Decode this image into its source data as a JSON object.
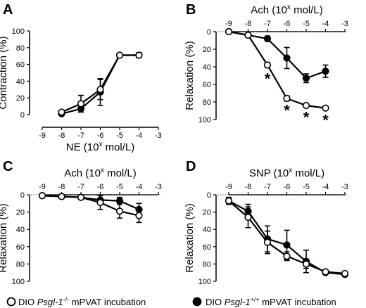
{
  "chart_data": [
    {
      "panel": "A",
      "type": "line",
      "xlabel": "NE (10",
      "xlabel_sup": "x",
      "xlabel_tail": " mol/L)",
      "ylabel": "Contraction (%)",
      "xlim": [
        -9,
        -3
      ],
      "ylim": [
        0,
        100
      ],
      "y_inverted": false,
      "x_ticks": [
        "-9",
        "-8",
        "-7",
        "-6",
        "-5",
        "-4",
        "-3"
      ],
      "y_ticks": [
        "0",
        "20",
        "40",
        "60",
        "80",
        "100"
      ],
      "x_axis_position": "bottom",
      "dotted_zero_line": false,
      "series": [
        {
          "name": "DIO Psgl-1-/- mPVAT incubation",
          "marker": "open",
          "x": [
            -8,
            -7,
            -6,
            -5,
            -4
          ],
          "y": [
            3,
            13,
            30,
            71,
            71
          ],
          "err": [
            2,
            10,
            12,
            1,
            3
          ]
        },
        {
          "name": "DIO Psgl-1+/+ mPVAT incubation",
          "marker": "filled",
          "x": [
            -8,
            -7,
            -6,
            -5,
            -4
          ],
          "y": [
            1,
            7,
            27,
            71,
            71
          ],
          "err": [
            1,
            2,
            16,
            1,
            3
          ]
        }
      ],
      "annotations": []
    },
    {
      "panel": "B",
      "type": "line",
      "xlabel": "Ach (10",
      "xlabel_sup": "x",
      "xlabel_tail": " mol/L)",
      "ylabel": "Relaxation (%)",
      "xlim": [
        -9,
        -3
      ],
      "ylim": [
        0,
        100
      ],
      "y_inverted": true,
      "x_ticks": [
        "-9",
        "-8",
        "-7",
        "-6",
        "-5",
        "-4",
        "-3"
      ],
      "y_ticks": [
        "0",
        "20",
        "40",
        "60",
        "80",
        "100"
      ],
      "x_axis_position": "top",
      "dotted_zero_line": true,
      "series": [
        {
          "name": "DIO Psgl-1-/- mPVAT incubation",
          "marker": "open",
          "x": [
            -9,
            -8,
            -7,
            -6,
            -5,
            -4
          ],
          "y": [
            0,
            4,
            38,
            76,
            84,
            87
          ],
          "err": [
            1,
            1,
            3,
            3,
            1,
            1
          ]
        },
        {
          "name": "DIO Psgl-1+/+ mPVAT incubation",
          "marker": "filled",
          "x": [
            -9,
            -8,
            -7,
            -6,
            -5,
            -4
          ],
          "y": [
            0,
            4,
            8,
            30,
            53,
            45
          ],
          "err": [
            1,
            1,
            3,
            12,
            5,
            7
          ]
        }
      ],
      "annotations": [
        {
          "text": "*",
          "x": -7,
          "y": 54
        },
        {
          "text": "*",
          "x": -6,
          "y": 90
        },
        {
          "text": "*",
          "x": -5,
          "y": 98
        },
        {
          "text": "*",
          "x": -4,
          "y": 101
        }
      ]
    },
    {
      "panel": "C",
      "type": "line",
      "xlabel": "Ach (10",
      "xlabel_sup": "x",
      "xlabel_tail": " mol/L)",
      "ylabel": "Relaxation (%)",
      "xlim": [
        -9,
        -3
      ],
      "ylim": [
        0,
        100
      ],
      "y_inverted": true,
      "x_ticks": [
        "-9",
        "-8",
        "-7",
        "-6",
        "-5",
        "-4",
        "-3"
      ],
      "y_ticks": [
        "0",
        "20",
        "40",
        "60",
        "80",
        "100"
      ],
      "x_axis_position": "top",
      "dotted_zero_line": true,
      "series": [
        {
          "name": "DIO Psgl-1-/- mPVAT incubation",
          "marker": "open",
          "x": [
            -9,
            -8,
            -7,
            -6,
            -5,
            -4
          ],
          "y": [
            1,
            2,
            3,
            9,
            19,
            24
          ],
          "err": [
            1,
            1,
            1,
            8,
            8,
            8
          ]
        },
        {
          "name": "DIO Psgl-1+/+ mPVAT incubation",
          "marker": "filled",
          "x": [
            -9,
            -8,
            -7,
            -6,
            -5,
            -4
          ],
          "y": [
            1,
            2,
            3,
            6,
            7,
            17
          ],
          "err": [
            1,
            1,
            1,
            5,
            4,
            7
          ]
        }
      ],
      "annotations": []
    },
    {
      "panel": "D",
      "type": "line",
      "xlabel": "SNP (10",
      "xlabel_sup": "x",
      "xlabel_tail": " mol/L)",
      "ylabel": "Relaxation (%)",
      "xlim": [
        -9,
        -3
      ],
      "ylim": [
        0,
        100
      ],
      "y_inverted": true,
      "x_ticks": [
        "-9",
        "-8",
        "-7",
        "-6",
        "-5",
        "-4",
        "-3"
      ],
      "y_ticks": [
        "0",
        "20",
        "40",
        "60",
        "80",
        "100"
      ],
      "x_axis_position": "top",
      "dotted_zero_line": true,
      "series": [
        {
          "name": "DIO Psgl-1-/- mPVAT incubation",
          "marker": "open",
          "x": [
            -9,
            -8,
            -7,
            -6,
            -5,
            -4,
            -3
          ],
          "y": [
            7,
            26,
            55,
            71,
            80,
            89,
            91
          ],
          "err": [
            4,
            12,
            13,
            5,
            5,
            2,
            2
          ]
        },
        {
          "name": "DIO Psgl-1+/+ mPVAT incubation",
          "marker": "filled",
          "x": [
            -9,
            -8,
            -7,
            -6,
            -5,
            -4,
            -3
          ],
          "y": [
            7,
            19,
            51,
            58,
            77,
            90,
            92
          ],
          "err": [
            4,
            8,
            15,
            17,
            13,
            2,
            2
          ]
        }
      ],
      "annotations": []
    }
  ],
  "legend": {
    "position": "bottom",
    "items": [
      {
        "marker": "open",
        "prefix": "DIO ",
        "gene": "Psgl-1",
        "sup": "-/-",
        "suffix": " mPVAT incubation"
      },
      {
        "marker": "filled",
        "prefix": "DIO ",
        "gene": "Psgl-1",
        "sup": "+/+",
        "suffix": " mPVAT incubation"
      }
    ]
  },
  "colors": {
    "ink": "#000000",
    "open_fill": "#ffffff",
    "filled_fill": "#000000",
    "zero_line": "#555555"
  }
}
